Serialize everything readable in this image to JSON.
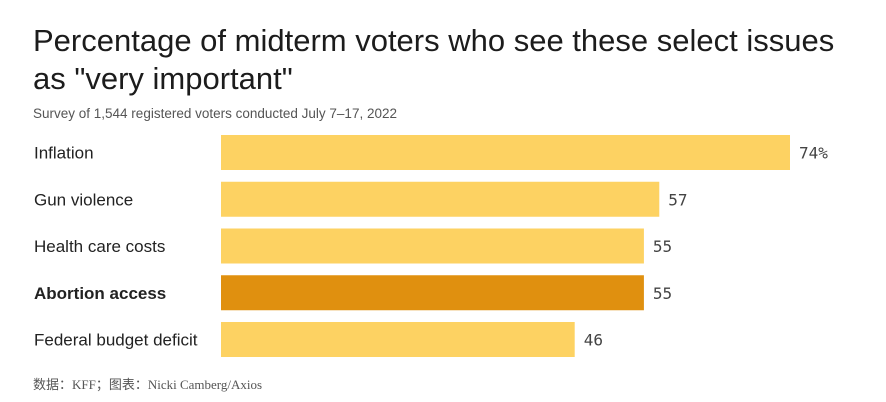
{
  "chart_data": {
    "type": "bar",
    "orientation": "horizontal",
    "title": "Percentage of midterm voters who see these select issues as \"very important\"",
    "subtitle": "Survey of 1,544 registered voters conducted July 7–17, 2022",
    "categories": [
      "Inflation",
      "Gun violence",
      "Health care costs",
      "Abortion access",
      "Federal budget deficit"
    ],
    "values": [
      74,
      57,
      55,
      55,
      46
    ],
    "value_labels": [
      "74%",
      "57",
      "55",
      "55",
      "46"
    ],
    "highlighted_category": "Abortion access",
    "unit": "%",
    "xlim": [
      0,
      100
    ],
    "colors": {
      "default_bar": "#FDD262",
      "highlight_bar": "#E0900F",
      "label_text": "#222222",
      "value_text": "#444444"
    }
  },
  "footer": {
    "source": "数据：KFF；图表：Nicki Camberg/Axios"
  }
}
